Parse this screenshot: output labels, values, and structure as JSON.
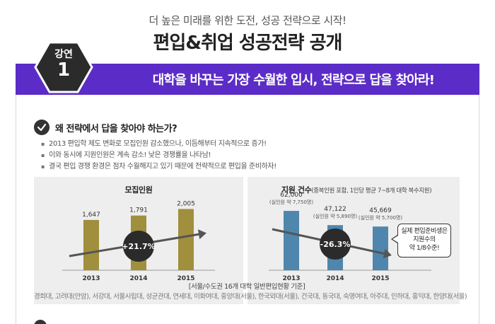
{
  "header": {
    "subtitle": "더 높은 미래를 위한 도전, 성공 전략으로 시작!",
    "title": "편입&취업 성공전략 공개"
  },
  "lecture_badge": {
    "label": "강연",
    "number": "1"
  },
  "banner": {
    "text": "대학을 바꾸는 가장 수월한 입시, 전략으로 답을 찾아라!"
  },
  "section": {
    "question": "왜 전략에서 답을 찾아야 하는가?",
    "bullets": [
      "2013 편입학 제도 변화로 모집인원 감소했으나, 이듬해부터 지속적으로 증가!",
      "이와 동시에 지원인원은 계속 감소! 낮은 경쟁률을 나타남!",
      "결국 편입 경쟁 환경은 점차 수월해지고 있기 때문에 전략적으로 편입을 준비하자!"
    ]
  },
  "chart_data": [
    {
      "type": "bar",
      "title": "모집인원",
      "categories": [
        "2013",
        "2014",
        "2015"
      ],
      "values": [
        1647,
        1791,
        2005
      ],
      "value_labels": [
        "1,647",
        "1,791",
        "2,005"
      ],
      "ylim": [
        0,
        2200
      ],
      "change_label": "+21.7%",
      "bar_color": "#a08f3c"
    },
    {
      "type": "bar",
      "title": "지원 건수",
      "title_note": "(중복인원 포함, 1인당 평균 7~8개 대학 복수지원)",
      "categories": [
        "2013",
        "2014",
        "2015"
      ],
      "values": [
        62000,
        47122,
        45669
      ],
      "value_labels": [
        "62,000",
        "47,122",
        "45,669"
      ],
      "sub_labels": [
        "(실인원 약 7,750명)",
        "(실인원 약 5,890명)",
        "(실인원 약 5,700명)"
      ],
      "ylim": [
        0,
        68000
      ],
      "change_label": "-26.3%",
      "bar_color": "#4f86ad",
      "callout": {
        "line1": "실제 편입준비생은",
        "line2": "지원수의",
        "line3": "약 1/8수준!"
      }
    }
  ],
  "footnote": {
    "source": "[서울/수도권 16개 대학 일반편입현황 기준]",
    "schools": "경희대, 고려대(안암), 서강대, 서울시립대, 성균관대, 연세대, 이화여대, 중앙대(서울), 한국외대(서울), 건국대, 동국대, 숙명여대, 아주대, 인하대, 홍익대, 한양대(서울)"
  }
}
